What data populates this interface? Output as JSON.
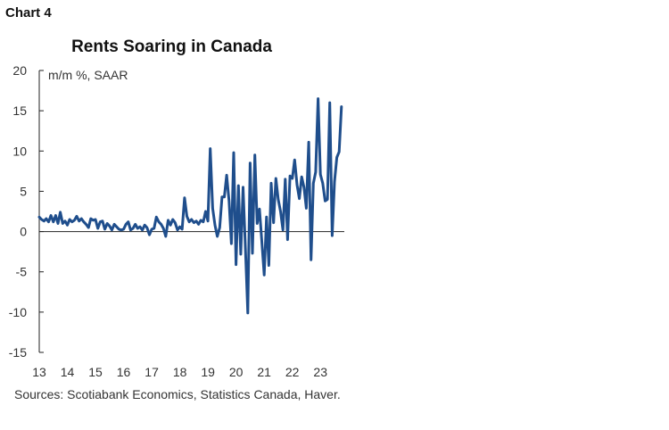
{
  "chart_label": "Chart 4",
  "chart_data": {
    "type": "line",
    "title": "Rents Soaring in Canada",
    "ylabel": "m/m %, SAAR",
    "xlabel": "",
    "ylim": [
      -15,
      20
    ],
    "yticks": [
      20,
      15,
      10,
      5,
      0,
      -5,
      -10,
      -15
    ],
    "xlim": [
      2013,
      2023.85
    ],
    "xticks": [
      {
        "label": "13",
        "x": 2013
      },
      {
        "label": "14",
        "x": 2014
      },
      {
        "label": "15",
        "x": 2015
      },
      {
        "label": "16",
        "x": 2016
      },
      {
        "label": "17",
        "x": 2017
      },
      {
        "label": "18",
        "x": 2018
      },
      {
        "label": "19",
        "x": 2019
      },
      {
        "label": "20",
        "x": 2020
      },
      {
        "label": "21",
        "x": 2021
      },
      {
        "label": "22",
        "x": 2022
      },
      {
        "label": "23",
        "x": 2023
      }
    ],
    "series": [
      {
        "color": "#1f4e8c",
        "x": [
          2013.0,
          2013.083,
          2013.167,
          2013.25,
          2013.333,
          2013.417,
          2013.5,
          2013.583,
          2013.667,
          2013.75,
          2013.833,
          2013.917,
          2014.0,
          2014.083,
          2014.167,
          2014.25,
          2014.333,
          2014.417,
          2014.5,
          2014.583,
          2014.667,
          2014.75,
          2014.833,
          2014.917,
          2015.0,
          2015.083,
          2015.167,
          2015.25,
          2015.333,
          2015.417,
          2015.5,
          2015.583,
          2015.667,
          2015.75,
          2015.833,
          2015.917,
          2016.0,
          2016.083,
          2016.167,
          2016.25,
          2016.333,
          2016.417,
          2016.5,
          2016.583,
          2016.667,
          2016.75,
          2016.833,
          2016.917,
          2017.0,
          2017.083,
          2017.167,
          2017.25,
          2017.333,
          2017.417,
          2017.5,
          2017.583,
          2017.667,
          2017.75,
          2017.833,
          2017.917,
          2018.0,
          2018.083,
          2018.167,
          2018.25,
          2018.333,
          2018.417,
          2018.5,
          2018.583,
          2018.667,
          2018.75,
          2018.833,
          2018.917,
          2019.0,
          2019.083,
          2019.167,
          2019.25,
          2019.333,
          2019.417,
          2019.5,
          2019.583,
          2019.667,
          2019.75,
          2019.833,
          2019.917,
          2020.0,
          2020.083,
          2020.167,
          2020.25,
          2020.333,
          2020.417,
          2020.5,
          2020.583,
          2020.667,
          2020.75,
          2020.833,
          2020.917,
          2021.0,
          2021.083,
          2021.167,
          2021.25,
          2021.333,
          2021.417,
          2021.5,
          2021.583,
          2021.667,
          2021.75,
          2021.833,
          2021.917,
          2022.0,
          2022.083,
          2022.167,
          2022.25,
          2022.333,
          2022.417,
          2022.5,
          2022.583,
          2022.667,
          2022.75,
          2022.833,
          2022.917,
          2023.0,
          2023.083,
          2023.167,
          2023.25,
          2023.333,
          2023.417,
          2023.5,
          2023.583,
          2023.667,
          2023.75
        ],
        "y": [
          1.8,
          1.5,
          1.3,
          1.6,
          1.2,
          2.0,
          1.2,
          2.0,
          1.0,
          2.4,
          1.0,
          1.3,
          0.8,
          1.5,
          1.2,
          1.4,
          1.9,
          1.3,
          1.6,
          1.2,
          0.9,
          0.5,
          1.6,
          1.4,
          1.5,
          0.4,
          1.2,
          1.3,
          0.3,
          1.0,
          0.7,
          0.2,
          0.9,
          0.6,
          0.3,
          0.2,
          0.3,
          0.9,
          1.2,
          0.2,
          0.4,
          0.9,
          0.4,
          0.6,
          0.2,
          0.8,
          0.5,
          -0.4,
          0.3,
          0.4,
          1.8,
          1.2,
          0.9,
          0.4,
          -0.6,
          1.4,
          0.8,
          1.5,
          1.1,
          0.2,
          0.6,
          0.3,
          4.2,
          1.9,
          1.2,
          1.5,
          1.1,
          1.3,
          0.9,
          1.4,
          1.2,
          2.5,
          1.3,
          10.3,
          2.9,
          0.8,
          -0.6,
          0.5,
          4.3,
          4.3,
          7.0,
          3.8,
          -1.5,
          9.8,
          -4.1,
          5.7,
          -2.8,
          5.5,
          -2.0,
          -10.1,
          8.5,
          -2.7,
          9.5,
          1.0,
          2.8,
          -1.2,
          -5.4,
          1.8,
          -4.2,
          6.0,
          1.1,
          6.6,
          4.0,
          2.5,
          0.2,
          6.5,
          -1.0,
          6.9,
          6.6,
          8.9,
          5.8,
          4.1,
          6.8,
          5.5,
          2.9,
          11.1,
          -3.5,
          6.0,
          7.4,
          16.5,
          7.1,
          6.0,
          3.8,
          4.0,
          16.0,
          -0.5,
          6.2,
          9.2,
          9.9,
          15.5
        ]
      }
    ]
  },
  "source_note": "Sources: Scotiabank Economics, Statistics Canada, Haver."
}
